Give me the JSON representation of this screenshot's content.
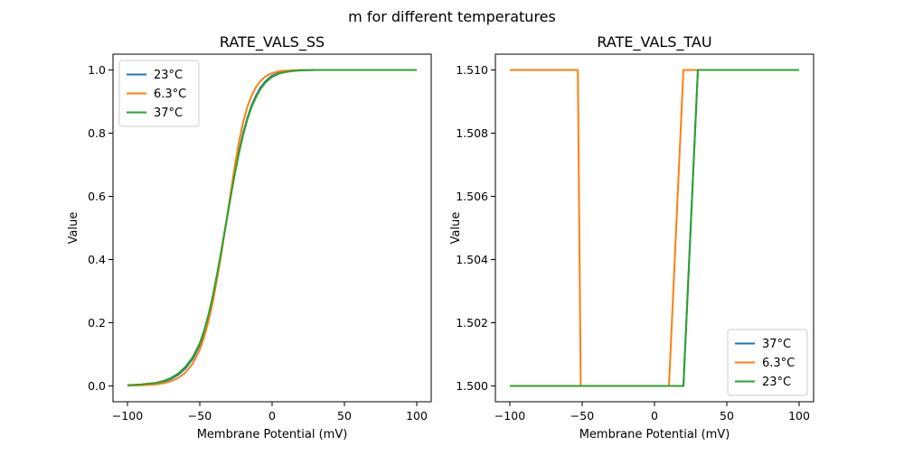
{
  "figure": {
    "suptitle": "m for different temperatures"
  },
  "chart_data": [
    {
      "type": "line",
      "title": "RATE_VALS_SS",
      "xlabel": "Membrane Potential (mV)",
      "ylabel": "Value",
      "xlim": [
        -110,
        110
      ],
      "ylim": [
        -0.05,
        1.05
      ],
      "xticks": [
        -100,
        -50,
        0,
        50,
        100
      ],
      "xtick_labels": [
        "−100",
        "−50",
        "0",
        "50",
        "100"
      ],
      "yticks": [
        0.0,
        0.2,
        0.4,
        0.6,
        0.8,
        1.0
      ],
      "ytick_labels": [
        "0.0",
        "0.2",
        "0.4",
        "0.6",
        "0.8",
        "1.0"
      ],
      "legend_position": "upper-left",
      "x": [
        -100,
        -90,
        -80,
        -75,
        -70,
        -65,
        -60,
        -55,
        -50,
        -47,
        -44,
        -41,
        -38,
        -35,
        -32,
        -29,
        -26,
        -23,
        -20,
        -17,
        -14,
        -11,
        -8,
        -5,
        -2,
        0,
        5,
        10,
        15,
        20,
        30,
        40,
        60,
        80,
        100
      ],
      "series": [
        {
          "name": "23°C",
          "color": "#1f77b4",
          "values": [
            0.002,
            0.004,
            0.009,
            0.014,
            0.022,
            0.035,
            0.055,
            0.085,
            0.13,
            0.17,
            0.22,
            0.28,
            0.35,
            0.43,
            0.51,
            0.59,
            0.67,
            0.74,
            0.8,
            0.85,
            0.89,
            0.92,
            0.945,
            0.962,
            0.975,
            0.982,
            0.991,
            0.995,
            0.998,
            0.999,
            1.0,
            1.0,
            1.0,
            1.0,
            1.0
          ]
        },
        {
          "name": "6.3°C",
          "color": "#ff7f0e",
          "values": [
            0.001,
            0.002,
            0.005,
            0.009,
            0.015,
            0.025,
            0.042,
            0.07,
            0.115,
            0.155,
            0.205,
            0.265,
            0.34,
            0.42,
            0.51,
            0.6,
            0.69,
            0.77,
            0.835,
            0.885,
            0.92,
            0.947,
            0.965,
            0.978,
            0.986,
            0.99,
            0.996,
            0.998,
            0.999,
            1.0,
            1.0,
            1.0,
            1.0,
            1.0,
            1.0
          ]
        },
        {
          "name": "37°C",
          "color": "#2ca02c",
          "values": [
            0.002,
            0.005,
            0.01,
            0.016,
            0.025,
            0.039,
            0.06,
            0.09,
            0.135,
            0.175,
            0.225,
            0.285,
            0.355,
            0.43,
            0.51,
            0.59,
            0.665,
            0.735,
            0.795,
            0.845,
            0.885,
            0.915,
            0.94,
            0.958,
            0.971,
            0.978,
            0.989,
            0.994,
            0.997,
            0.999,
            1.0,
            1.0,
            1.0,
            1.0,
            1.0
          ]
        }
      ]
    },
    {
      "type": "line",
      "title": "RATE_VALS_TAU",
      "xlabel": "Membrane Potential (mV)",
      "ylabel": "Value",
      "xlim": [
        -110,
        110
      ],
      "ylim": [
        1.4995,
        1.5105
      ],
      "xticks": [
        -100,
        -50,
        0,
        50,
        100
      ],
      "xtick_labels": [
        "−100",
        "−50",
        "0",
        "50",
        "100"
      ],
      "yticks": [
        1.5,
        1.502,
        1.504,
        1.506,
        1.508,
        1.51
      ],
      "ytick_labels": [
        "1.500",
        "1.502",
        "1.504",
        "1.506",
        "1.508",
        "1.510"
      ],
      "legend_position": "lower-right",
      "series": [
        {
          "name": "37°C",
          "color": "#1f77b4",
          "x": [
            -100,
            20,
            30,
            100
          ],
          "values": [
            1.5,
            1.5,
            1.51,
            1.51
          ]
        },
        {
          "name": "6.3°C",
          "color": "#ff7f0e",
          "x": [
            -100,
            -53,
            -51,
            10,
            20,
            100
          ],
          "values": [
            1.51,
            1.51,
            1.5,
            1.5,
            1.51,
            1.51
          ]
        },
        {
          "name": "23°C",
          "color": "#2ca02c",
          "x": [
            -100,
            20,
            30,
            100
          ],
          "values": [
            1.5,
            1.5,
            1.51,
            1.51
          ]
        }
      ]
    }
  ]
}
